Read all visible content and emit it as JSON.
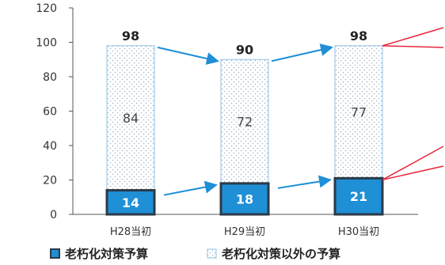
{
  "chart_data": {
    "type": "bar",
    "stacked": true,
    "categories": [
      "H28当初",
      "H29当初",
      "H30当初"
    ],
    "series": [
      {
        "name": "老朽化対策予算",
        "values": [
          14,
          18,
          21
        ],
        "color": "#1f8fd6"
      },
      {
        "name": "老朽化対策以外の予算",
        "values": [
          84,
          72,
          77
        ],
        "color": "#ffffff"
      }
    ],
    "totals": [
      98,
      90,
      98
    ],
    "ylim": [
      0,
      120
    ],
    "yticks": [
      0,
      20,
      40,
      60,
      80,
      100,
      120
    ],
    "grid": false,
    "legend_position": "bottom",
    "colors": {
      "arrow": "#1f8fd6",
      "callout": "#e8273d",
      "bar_border": "#2b3a48",
      "dot": "#9fb6c8"
    }
  }
}
